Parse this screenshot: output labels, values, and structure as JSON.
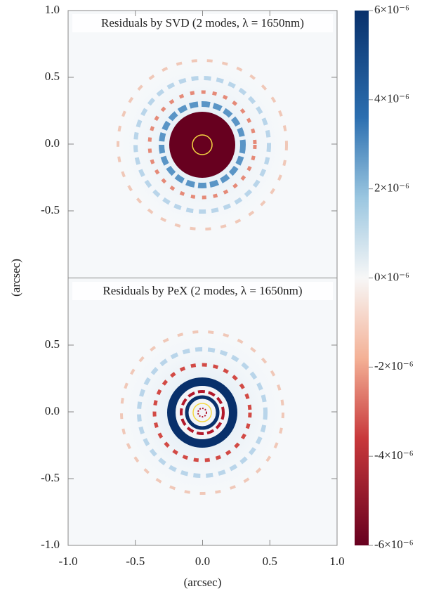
{
  "chart_data": [
    {
      "type": "image",
      "title": "Residuals by SVD (2 modes, λ = 1650nm)",
      "ylabel": "(arcsec)",
      "xlim": [
        -1.0,
        1.0
      ],
      "ylim": [
        -1.0,
        1.0
      ],
      "yticks": [
        {
          "value": 1.0,
          "label": "1.0"
        },
        {
          "value": 0.5,
          "label": "0.5"
        },
        {
          "value": 0.0,
          "label": "0.0"
        },
        {
          "value": -0.5,
          "label": "-0.5"
        }
      ]
    },
    {
      "type": "image",
      "title": "Residuals by PeX (2 modes, λ = 1650nm)",
      "xlabel": "(arcsec)",
      "xlim": [
        -1.0,
        1.0
      ],
      "ylim": [
        -1.0,
        1.0
      ],
      "xticks": [
        {
          "value": -1.0,
          "label": "-1.0"
        },
        {
          "value": -0.5,
          "label": "-0.5"
        },
        {
          "value": 0.0,
          "label": "0.0"
        },
        {
          "value": 0.5,
          "label": "0.5"
        },
        {
          "value": 1.0,
          "label": "1.0"
        }
      ],
      "yticks": [
        {
          "value": 0.5,
          "label": "0.5"
        },
        {
          "value": 0.0,
          "label": "0.0"
        },
        {
          "value": -0.5,
          "label": "-0.5"
        },
        {
          "value": -1.0,
          "label": "-1.0"
        }
      ]
    },
    {
      "type": "colorbar",
      "clim": [
        -6e-06,
        6e-06
      ],
      "ticks": [
        {
          "value": 6e-06,
          "label": "6×10⁻⁶"
        },
        {
          "value": 4e-06,
          "label": "4×10⁻⁶"
        },
        {
          "value": 2e-06,
          "label": "2×10⁻⁶"
        },
        {
          "value": 0,
          "label": "0×10⁻⁶"
        },
        {
          "value": -2e-06,
          "label": "-2×10⁻⁶"
        },
        {
          "value": -4e-06,
          "label": "-4×10⁻⁶"
        },
        {
          "value": -6e-06,
          "label": "-6×10⁻⁶"
        }
      ]
    }
  ]
}
